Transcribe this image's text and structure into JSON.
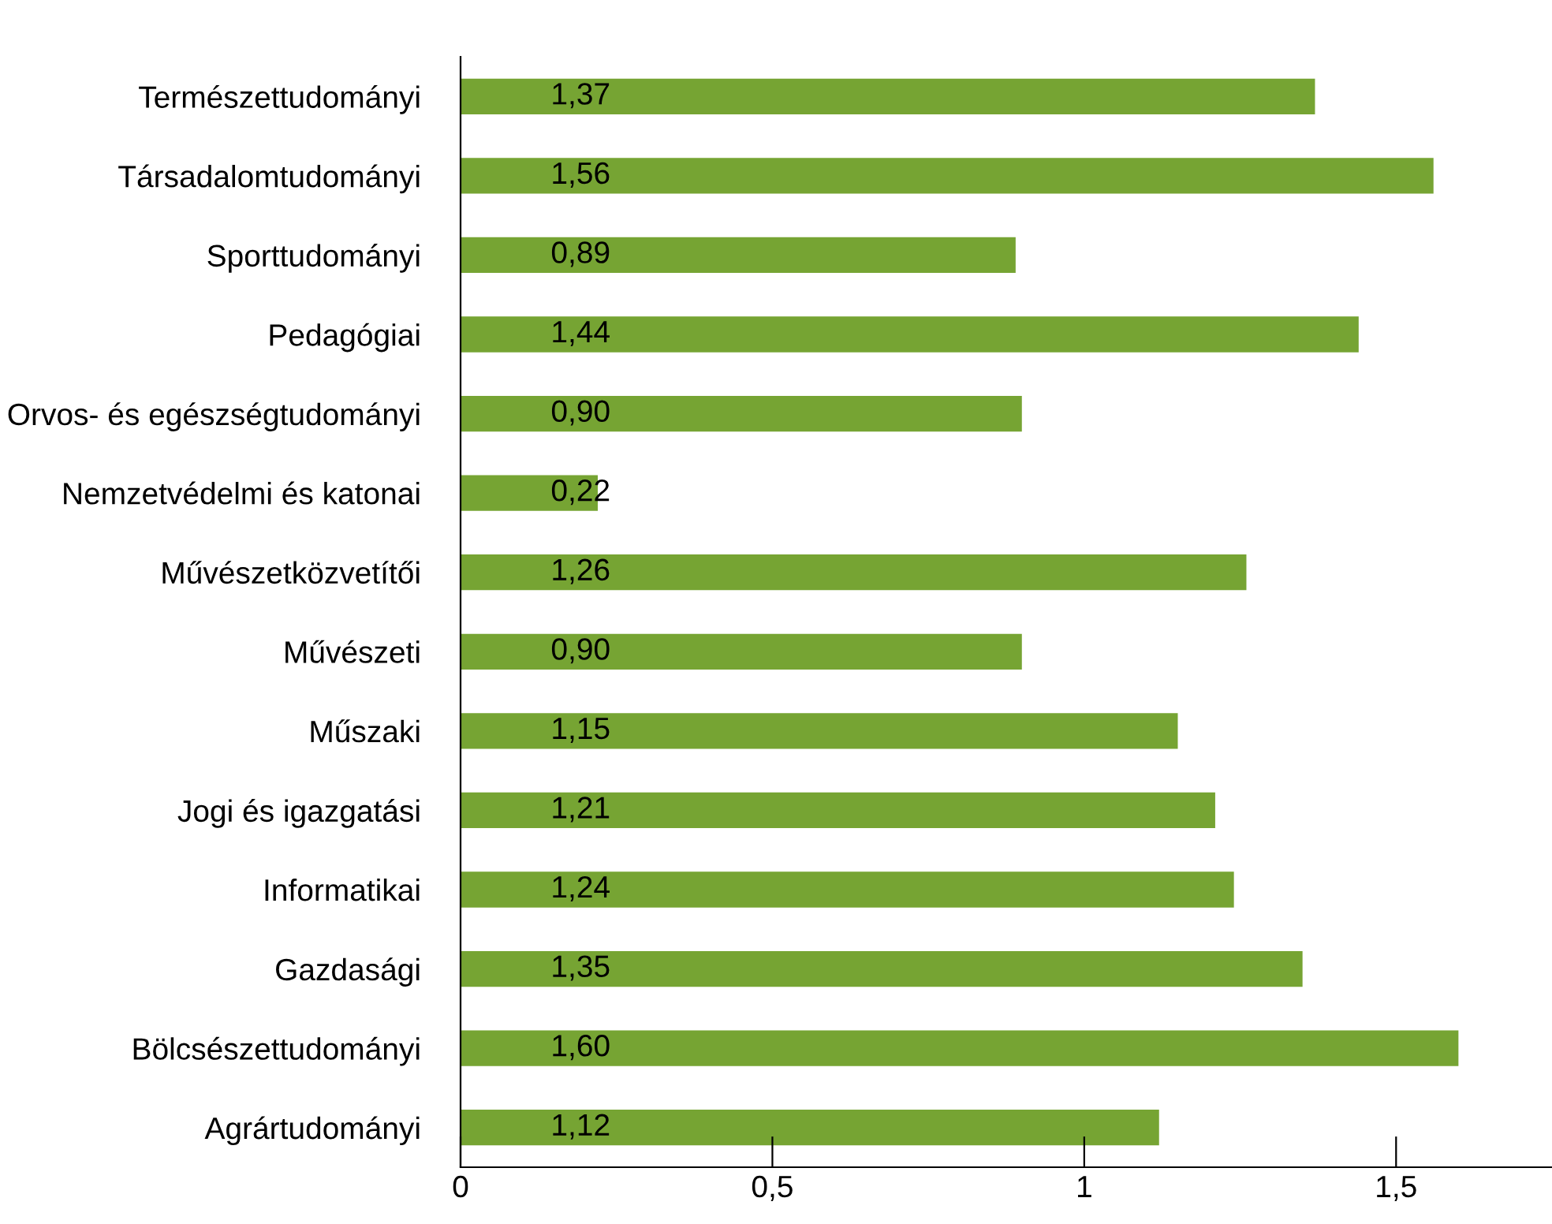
{
  "chart_data": {
    "type": "bar",
    "orientation": "horizontal",
    "categories": [
      "Természettudományi",
      "Társadalomtudományi",
      "Sporttudományi",
      "Pedagógiai",
      "Orvos- és egészségtudományi",
      "Nemzetvédelmi és katonai",
      "Művészetközvetítői",
      "Művészeti",
      "Műszaki",
      "Jogi és igazgatási",
      "Informatikai",
      "Gazdasági",
      "Bölcsészettudományi",
      "Agrártudományi"
    ],
    "values": [
      1.37,
      1.56,
      0.89,
      1.44,
      0.9,
      0.22,
      1.26,
      0.9,
      1.15,
      1.21,
      1.24,
      1.35,
      1.6,
      1.12
    ],
    "value_labels": [
      "1,37",
      "1,56",
      "0,89",
      "1,44",
      "0,90",
      "0,22",
      "1,26",
      "0,90",
      "1,15",
      "1,21",
      "1,24",
      "1,35",
      "1,60",
      "1,12"
    ],
    "color": "#76a433",
    "xlim": [
      0,
      1.75
    ],
    "xticks": [
      0,
      {
        "value": 0.5,
        "label": "0,5"
      },
      1,
      {
        "value": 1.5,
        "label": "1,5"
      }
    ],
    "grid": false,
    "legend": false
  }
}
